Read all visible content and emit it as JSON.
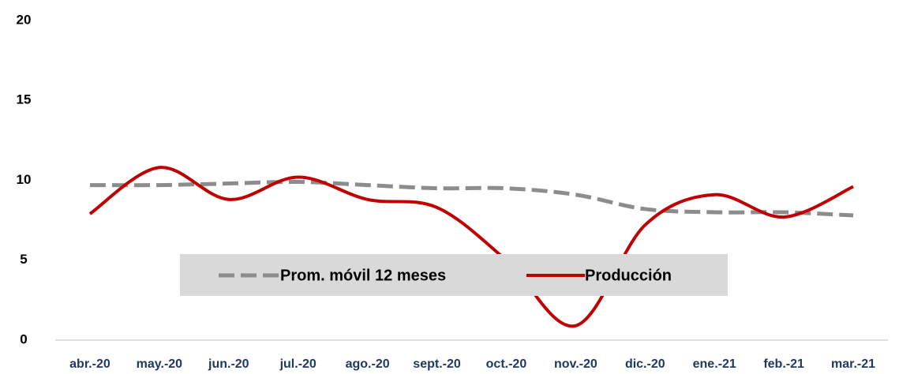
{
  "chart_data": {
    "type": "line",
    "categories": [
      "abr.-20",
      "may.-20",
      "jun.-20",
      "jul.-20",
      "ago.-20",
      "sept.-20",
      "oct.-20",
      "nov.-20",
      "dic.-20",
      "ene.-21",
      "feb.-21",
      "mar.-21"
    ],
    "series": [
      {
        "name": "Prom. móvil 12 meses",
        "color": "#8c8c8c",
        "dash": true,
        "values": [
          9.7,
          9.7,
          9.8,
          9.9,
          9.7,
          9.5,
          9.5,
          9.1,
          8.2,
          8.0,
          8.0,
          7.8
        ]
      },
      {
        "name": "Producción",
        "color": "#c00000",
        "dash": false,
        "values": [
          7.9,
          10.8,
          8.8,
          10.2,
          8.8,
          8.3,
          5.0,
          0.9,
          7.2,
          9.1,
          7.7,
          9.6
        ]
      }
    ],
    "ylim": [
      0,
      20
    ],
    "yticks": [
      0,
      5,
      10,
      15,
      20
    ],
    "grid": false
  }
}
